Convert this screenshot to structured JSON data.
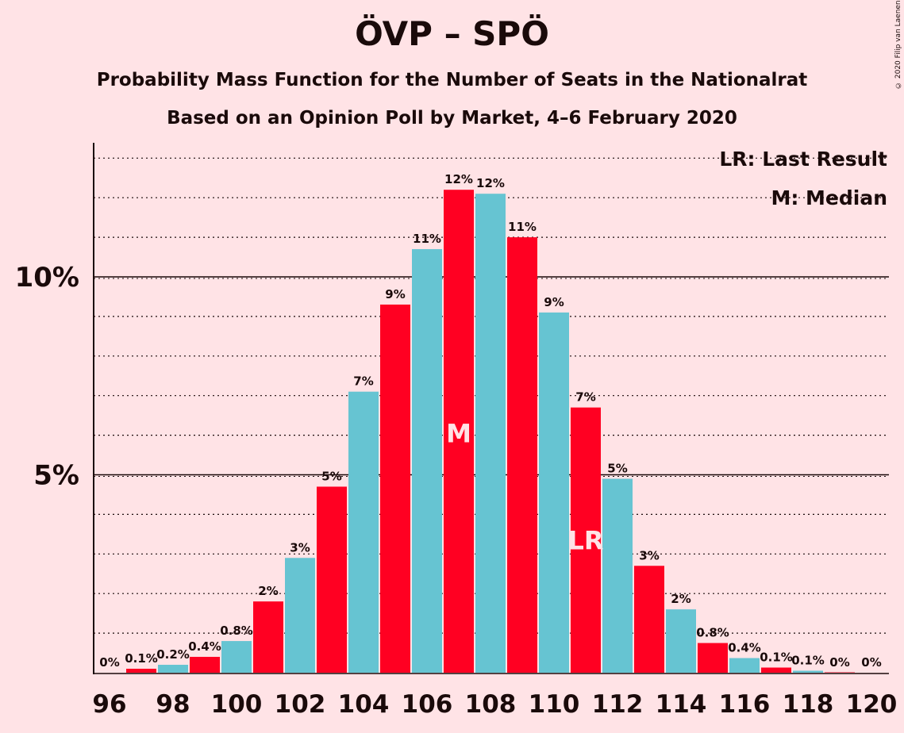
{
  "title": "ÖVP – SPÖ",
  "subtitle": "Probability Mass Function for the Number of Seats in the Nationalrat",
  "subtitle2": "Based on an Opinion Poll by Market, 4–6 February 2020",
  "copyright": "© 2020 Filip van Laenen",
  "legend": {
    "last_result": "LR: Last Result",
    "median": "M: Median"
  },
  "colors": {
    "background": "#FFE3E6",
    "red": "#FF0022",
    "cyan": "#66C4D2",
    "text": "#1a0a0a"
  },
  "chart_data": {
    "type": "bar",
    "categories": [
      96,
      97,
      98,
      99,
      100,
      101,
      102,
      103,
      104,
      105,
      106,
      107,
      108,
      109,
      110,
      111,
      112,
      113,
      114,
      115,
      116,
      117,
      118,
      119,
      120
    ],
    "values": [
      0.0,
      0.1,
      0.2,
      0.4,
      0.8,
      1.8,
      2.9,
      4.7,
      7.1,
      9.3,
      10.7,
      12.2,
      12.1,
      11.0,
      9.1,
      6.7,
      4.9,
      2.7,
      1.6,
      0.75,
      0.37,
      0.13,
      0.05,
      0.01,
      0.0
    ],
    "labels": [
      "0%",
      "0.1%",
      "0.2%",
      "0.4%",
      "0.8%",
      "2%",
      "3%",
      "5%",
      "7%",
      "9%",
      "11%",
      "12%",
      "12%",
      "11%",
      "9%",
      "7%",
      "5%",
      "3%",
      "2%",
      "0.8%",
      "0.4%",
      "0.1%",
      "0.1%",
      "0%",
      "0%"
    ],
    "x_tick_labels": [
      "96",
      "98",
      "100",
      "102",
      "104",
      "106",
      "108",
      "110",
      "112",
      "114",
      "116",
      "118",
      "120"
    ],
    "y_tick_labels": [
      "5%",
      "10%"
    ],
    "y_ticks": [
      5,
      10
    ],
    "ylim": [
      0,
      13.3
    ],
    "median": 107,
    "median_label": "M",
    "last_result": 111,
    "last_result_label": "LR",
    "grid": "dotted at 1% steps, solid at 5% and 10%",
    "legend_position": "top-right"
  }
}
